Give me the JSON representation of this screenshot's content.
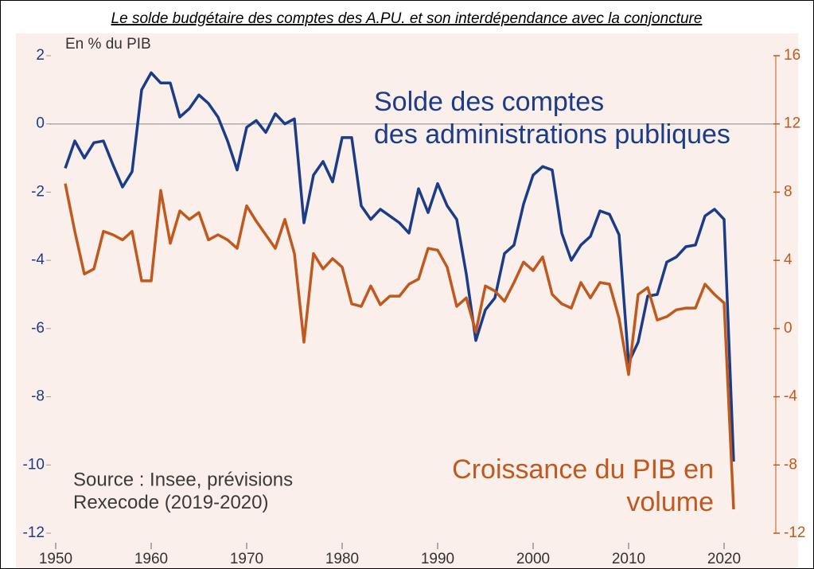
{
  "chart_data": {
    "type": "line",
    "title": "Le solde budgétaire des comptes des A.PU. et son interdépendance avec la conjoncture",
    "y_label": "En % du PIB",
    "annotations": [
      {
        "lines": [
          "Solde des comptes",
          "des administrations publiques"
        ],
        "color": "#1b3c87"
      },
      {
        "lines": [
          "Croissance du PIB en",
          "volume"
        ],
        "color": "#c0591d"
      },
      {
        "lines": [
          "Source : Insee, prévisions",
          "Rexecode (2019-2020)"
        ],
        "color": "#3a3a3a"
      }
    ],
    "x": [
      1951,
      1952,
      1953,
      1954,
      1955,
      1956,
      1957,
      1958,
      1959,
      1960,
      1961,
      1962,
      1963,
      1964,
      1965,
      1966,
      1967,
      1968,
      1969,
      1970,
      1971,
      1972,
      1973,
      1974,
      1975,
      1976,
      1977,
      1978,
      1979,
      1980,
      1981,
      1982,
      1983,
      1984,
      1985,
      1986,
      1987,
      1988,
      1989,
      1990,
      1991,
      1992,
      1993,
      1994,
      1995,
      1996,
      1997,
      1998,
      1999,
      2000,
      2001,
      2002,
      2003,
      2004,
      2005,
      2006,
      2007,
      2008,
      2009,
      2010,
      2011,
      2012,
      2013,
      2014,
      2015,
      2016,
      2017,
      2018,
      2019,
      2020,
      2021
    ],
    "series": [
      {
        "name": "Solde des comptes des administrations publiques",
        "color": "#1b3c87",
        "axis": "y",
        "values": [
          -1.3,
          -0.5,
          -1.0,
          -0.55,
          -0.5,
          -1.2,
          -1.85,
          -1.4,
          1.0,
          1.5,
          1.2,
          1.2,
          0.2,
          0.45,
          0.85,
          0.6,
          0.2,
          -0.5,
          -1.35,
          -0.1,
          0.1,
          -0.25,
          0.3,
          0,
          0.15,
          -2.9,
          -1.5,
          -1.1,
          -1.7,
          -0.4,
          -0.4,
          -2.4,
          -2.8,
          -2.5,
          -2.7,
          -2.9,
          -3.2,
          -1.9,
          -2.6,
          -1.75,
          -2.4,
          -2.8,
          -4.4,
          -6.35,
          -5.45,
          -5.1,
          -3.8,
          -3.55,
          -2.35,
          -1.5,
          -1.25,
          -1.35,
          -3.2,
          -4.0,
          -3.55,
          -3.3,
          -2.55,
          -2.65,
          -3.25,
          -7.0,
          -6.4,
          -5.05,
          -5.0,
          -4.05,
          -3.9,
          -3.6,
          -3.55,
          -2.7,
          -2.5,
          -2.8,
          -9.9
        ]
      },
      {
        "name": "Croissance du PIB en volume",
        "color": "#c0591d",
        "axis": "y2",
        "values": [
          8.5,
          5.7,
          3.2,
          3.5,
          5.7,
          5.5,
          5.2,
          5.7,
          2.8,
          2.8,
          8.1,
          5.0,
          6.9,
          6.4,
          6.8,
          5.2,
          5.5,
          5.2,
          4.7,
          7.2,
          6.3,
          5.5,
          4.7,
          6.4,
          4.4,
          -0.8,
          4.4,
          3.5,
          4.1,
          3.6,
          1.45,
          1.3,
          2.5,
          1.4,
          1.9,
          1.9,
          2.6,
          2.9,
          4.7,
          4.6,
          3.6,
          1.3,
          1.8,
          -0.2,
          2.5,
          2.2,
          1.6,
          2.7,
          3.9,
          3.4,
          4.2,
          2.0,
          1.45,
          1.2,
          2.7,
          1.8,
          2.7,
          2.6,
          0.6,
          -2.7,
          2.0,
          2.4,
          0.5,
          0.7,
          1.1,
          1.2,
          1.2,
          2.6,
          2.0,
          1.5,
          -10.6
        ]
      }
    ],
    "xlim": [
      1950,
      2025
    ],
    "xticks": [
      1950,
      1960,
      1970,
      1980,
      1990,
      2000,
      2010,
      2020
    ],
    "ylim": [
      -12,
      2
    ],
    "yticks": [
      2,
      0,
      -2,
      -4,
      -6,
      -8,
      -10,
      -12
    ],
    "y2lim": [
      -12,
      16
    ],
    "y2ticks": [
      16,
      12,
      8,
      4,
      0,
      -4,
      -8,
      -12
    ],
    "zero_line": true
  }
}
